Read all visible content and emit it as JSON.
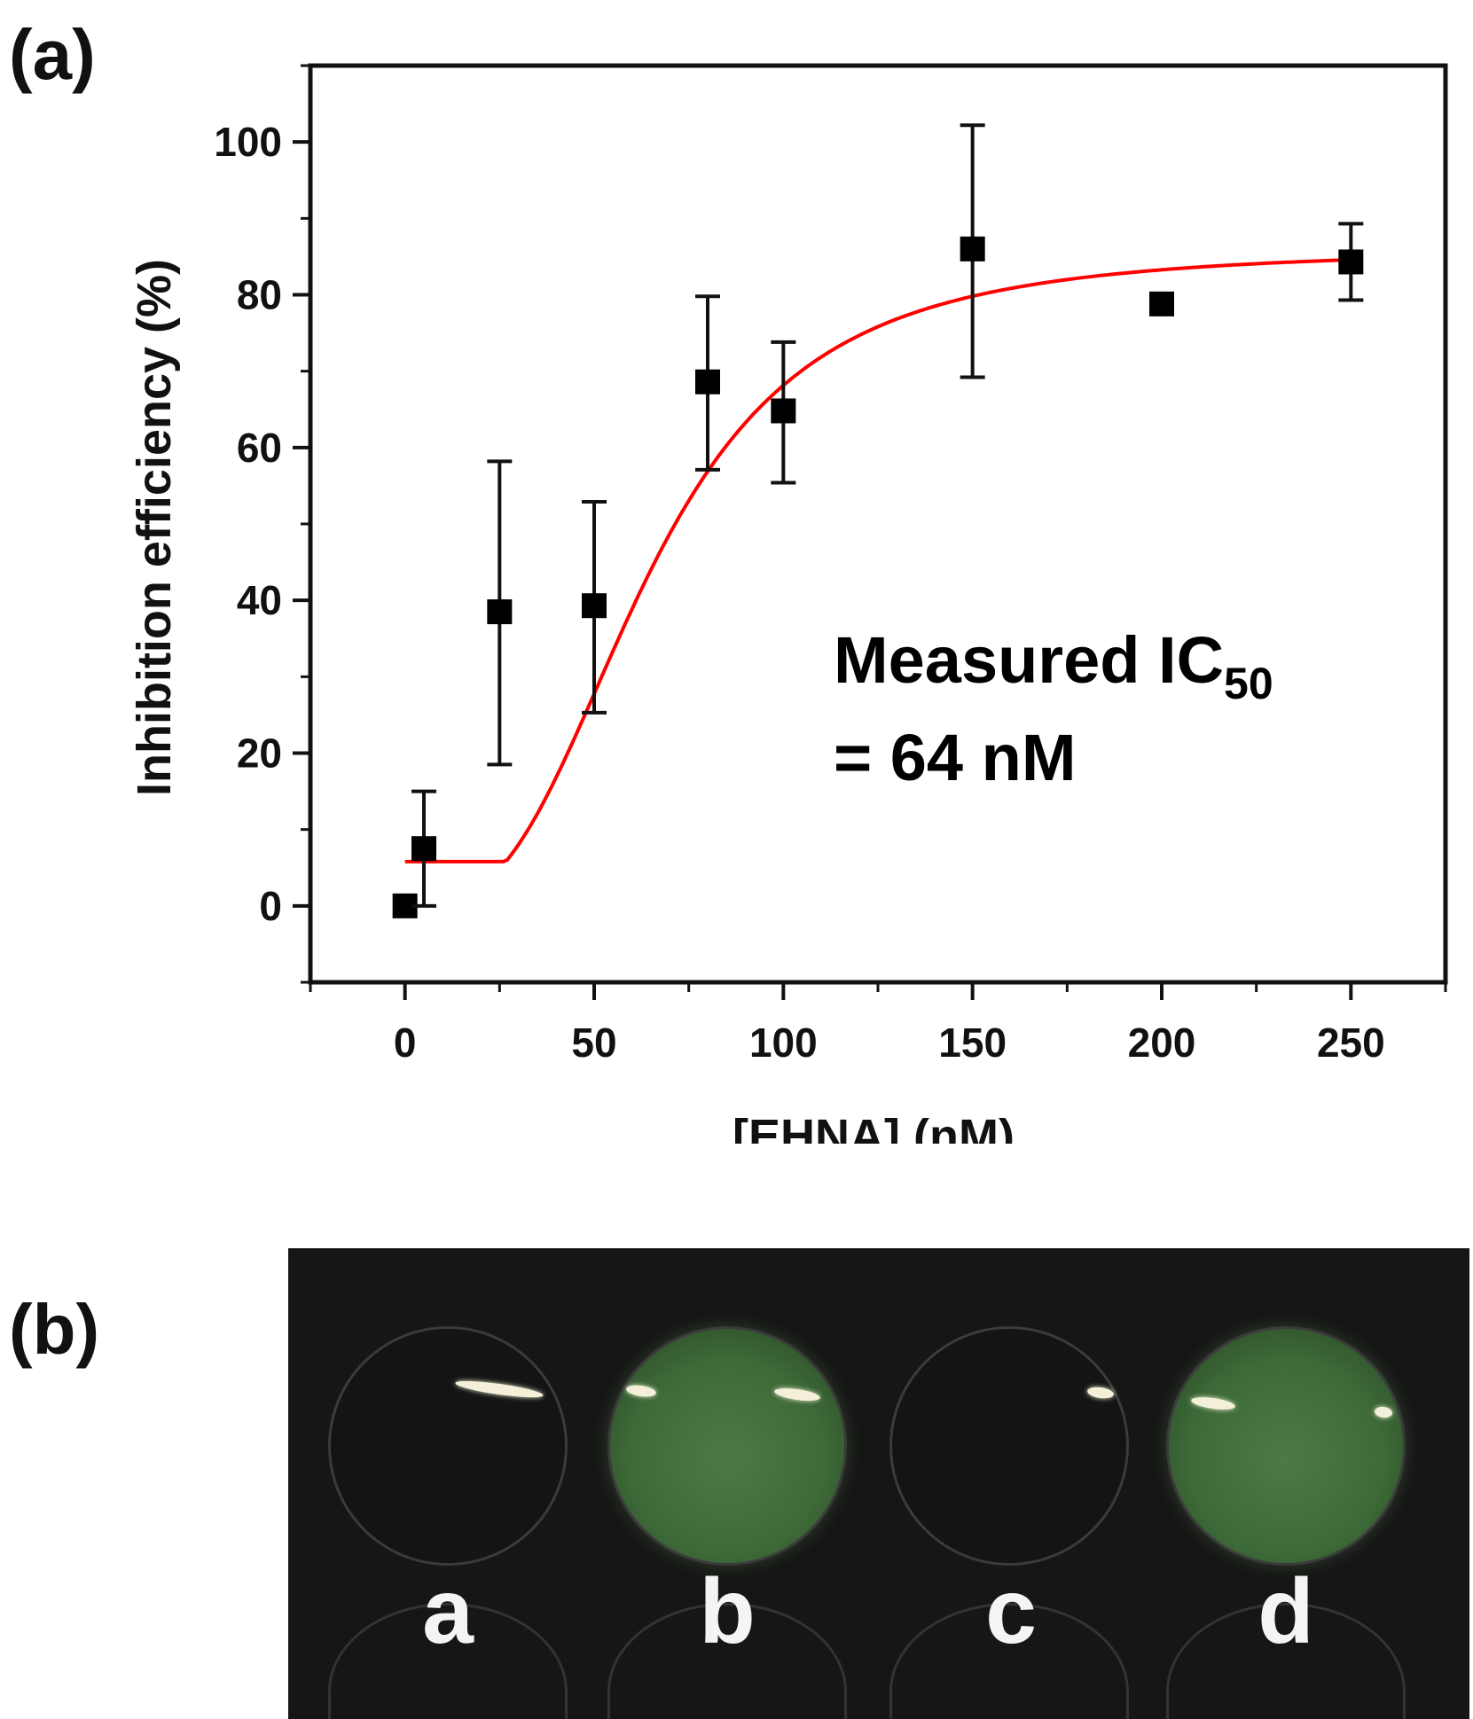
{
  "panels": {
    "a": "(a)",
    "b": "(b)"
  },
  "chart_data": {
    "type": "scatter",
    "xlabel": "[EHNA] (nM)",
    "ylabel": "Inhibition efficiency (%)",
    "xlim": [
      -25,
      275
    ],
    "ylim": [
      -10,
      110
    ],
    "xticks": [
      0,
      50,
      100,
      150,
      200,
      250
    ],
    "yticks": [
      0,
      20,
      40,
      60,
      80,
      100
    ],
    "grid": false,
    "series": [
      {
        "kind": "points-with-error-bars",
        "color": "#000000",
        "x": [
          0,
          5,
          25,
          50,
          80,
          100,
          150,
          200,
          250
        ],
        "y": [
          0,
          7.5,
          38.5,
          39.3,
          68.6,
          64.8,
          86.0,
          78.8,
          84.3
        ],
        "err_low": [
          0,
          7.5,
          20,
          14,
          11.5,
          9.4,
          16.8,
          0,
          5
        ],
        "err_high": [
          0,
          7.5,
          19.7,
          13.6,
          11.2,
          9.0,
          16.2,
          0,
          5
        ]
      },
      {
        "kind": "fit-curve",
        "color": "#ff0000",
        "model": "logistic",
        "bottom": 0,
        "top": 86,
        "x0": 64,
        "hill": 3,
        "x_range": [
          0,
          250
        ]
      }
    ],
    "annotation": {
      "line1_main": "Measured IC",
      "line1_sub": "50",
      "line2": "= 64 nM"
    }
  },
  "photo": {
    "wells": [
      {
        "label": "a",
        "state": "dark"
      },
      {
        "label": "b",
        "state": "green"
      },
      {
        "label": "c",
        "state": "dark"
      },
      {
        "label": "d",
        "state": "green"
      }
    ]
  }
}
